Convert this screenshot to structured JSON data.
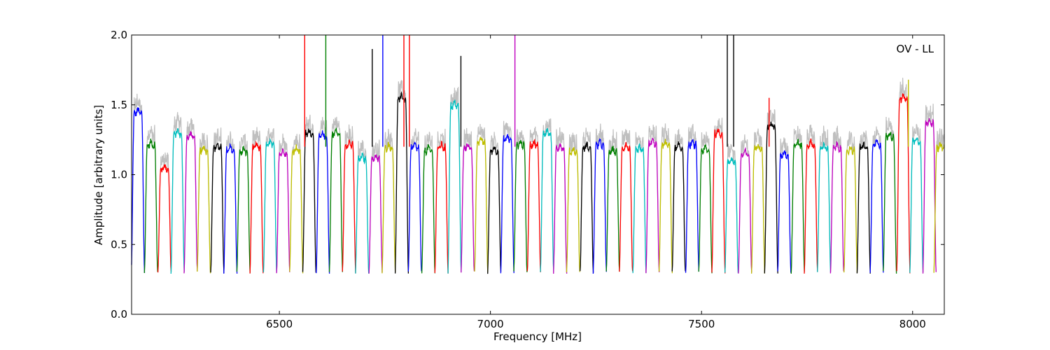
{
  "chart_data": {
    "type": "line",
    "title": "",
    "xlabel": "Frequency [MHz]",
    "ylabel": "Amplitude [arbitrary units]",
    "annotation": "OV - LL",
    "xlim": [
      6150,
      8075
    ],
    "ylim": [
      0.0,
      2.0
    ],
    "xticks": [
      6500,
      7000,
      7500,
      8000
    ],
    "xtick_labels": [
      "6500",
      "7000",
      "7500",
      "8000"
    ],
    "yticks": [
      0.0,
      0.5,
      1.0,
      1.5,
      2.0
    ],
    "ytick_labels": [
      "0.0",
      "0.5",
      "1.0",
      "1.5",
      "2.0"
    ],
    "grid": false,
    "legend": "none",
    "background_trace_color": "#bfbfbf",
    "color_cycle": [
      "#0000ff",
      "#008000",
      "#ff0000",
      "#00bfbf",
      "#bf00bf",
      "#bfbf00",
      "#000000"
    ],
    "band_width_mhz": 31.25,
    "band_centers_mhz": [
      6165,
      6196,
      6228,
      6259,
      6290,
      6321,
      6353,
      6384,
      6415,
      6446,
      6478,
      6509,
      6540,
      6571,
      6603,
      6634,
      6665,
      6696,
      6728,
      6759,
      6790,
      6821,
      6853,
      6884,
      6915,
      6946,
      6978,
      7009,
      7040,
      7071,
      7103,
      7134,
      7165,
      7196,
      7228,
      7259,
      7290,
      7321,
      7353,
      7384,
      7415,
      7446,
      7478,
      7509,
      7540,
      7571,
      7603,
      7634,
      7665,
      7696,
      7728,
      7759,
      7790,
      7821,
      7853,
      7884,
      7915,
      7946,
      7978,
      8009,
      8040,
      8066
    ],
    "band_plateau_levels": [
      1.45,
      1.22,
      1.05,
      1.3,
      1.28,
      1.18,
      1.2,
      1.18,
      1.17,
      1.2,
      1.22,
      1.16,
      1.18,
      1.3,
      1.28,
      1.3,
      1.22,
      1.12,
      1.12,
      1.2,
      1.55,
      1.2,
      1.18,
      1.2,
      1.5,
      1.2,
      1.24,
      1.18,
      1.26,
      1.22,
      1.22,
      1.3,
      1.2,
      1.17,
      1.2,
      1.22,
      1.17,
      1.2,
      1.18,
      1.23,
      1.22,
      1.2,
      1.22,
      1.18,
      1.3,
      1.1,
      1.15,
      1.2,
      1.35,
      1.15,
      1.22,
      1.22,
      1.2,
      1.2,
      1.18,
      1.2,
      1.22,
      1.28,
      1.55,
      1.25,
      1.38,
      1.2
    ],
    "band_dip_minimum": 0.3,
    "rfi_spikes": [
      {
        "x": 6560,
        "y": 2.0,
        "color": "#ff0000"
      },
      {
        "x": 6610,
        "y": 2.0,
        "color": "#008000"
      },
      {
        "x": 6720,
        "y": 1.9,
        "color": "#000000"
      },
      {
        "x": 6745,
        "y": 2.0,
        "color": "#0000ff"
      },
      {
        "x": 6795,
        "y": 2.0,
        "color": "#ff0000"
      },
      {
        "x": 6808,
        "y": 2.0,
        "color": "#ff0000"
      },
      {
        "x": 6930,
        "y": 1.85,
        "color": "#000000"
      },
      {
        "x": 7058,
        "y": 2.0,
        "color": "#bf00bf"
      },
      {
        "x": 7561,
        "y": 2.0,
        "color": "#000000"
      },
      {
        "x": 7576,
        "y": 2.0,
        "color": "#000000"
      },
      {
        "x": 7660,
        "y": 1.55,
        "color": "#ff0000"
      },
      {
        "x": 7990,
        "y": 1.68,
        "color": "#bfbf00"
      }
    ]
  }
}
